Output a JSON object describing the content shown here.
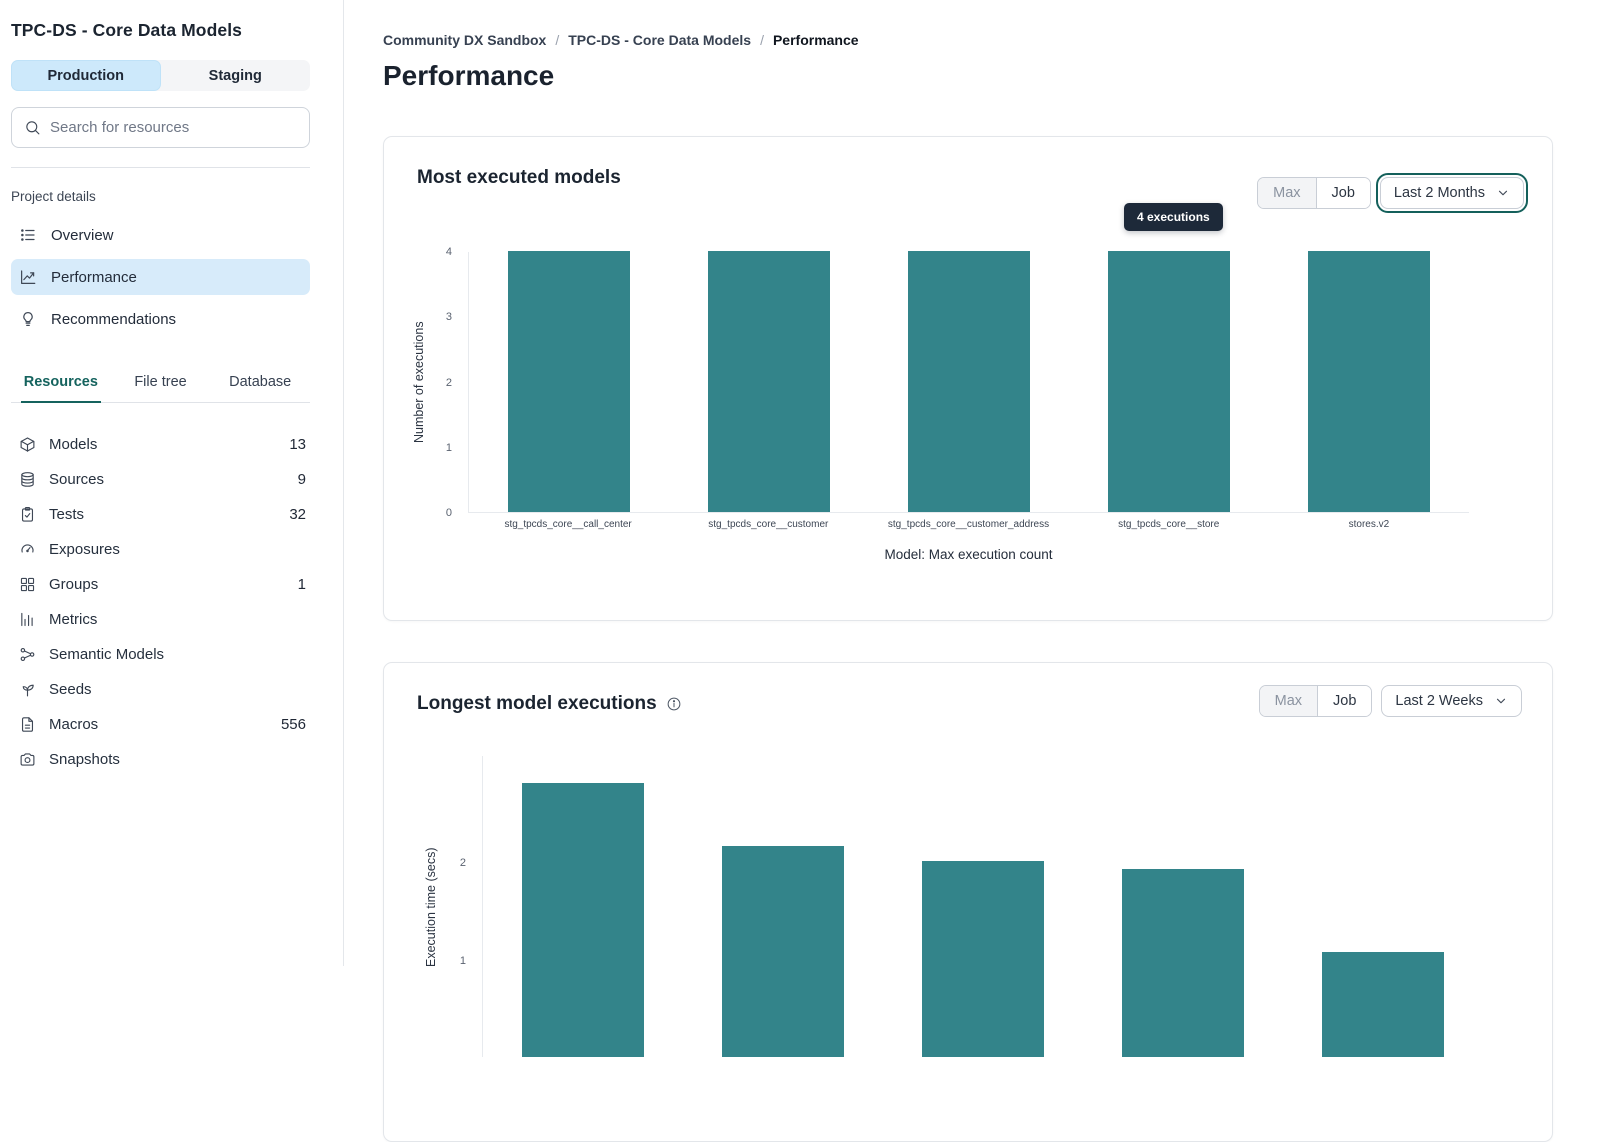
{
  "sidebar": {
    "project_title": "TPC-DS - Core Data Models",
    "environments": [
      {
        "label": "Production",
        "active": true
      },
      {
        "label": "Staging",
        "active": false
      }
    ],
    "search": {
      "placeholder": "Search for resources"
    },
    "project_details_label": "Project details",
    "nav": [
      {
        "label": "Overview",
        "icon": "list",
        "active": false
      },
      {
        "label": "Performance",
        "icon": "line-chart",
        "active": true
      },
      {
        "label": "Recommendations",
        "icon": "lightbulb",
        "active": false
      }
    ],
    "tabs": [
      {
        "label": "Resources",
        "active": true
      },
      {
        "label": "File tree",
        "active": false
      },
      {
        "label": "Database",
        "active": false
      }
    ],
    "resources": [
      {
        "label": "Models",
        "icon": "cube",
        "count": "13"
      },
      {
        "label": "Sources",
        "icon": "database",
        "count": "9"
      },
      {
        "label": "Tests",
        "icon": "clipboard",
        "count": "32"
      },
      {
        "label": "Exposures",
        "icon": "gauge",
        "count": ""
      },
      {
        "label": "Groups",
        "icon": "grid",
        "count": "1"
      },
      {
        "label": "Metrics",
        "icon": "bar-chart",
        "count": ""
      },
      {
        "label": "Semantic Models",
        "icon": "nodes",
        "count": ""
      },
      {
        "label": "Seeds",
        "icon": "seedling",
        "count": ""
      },
      {
        "label": "Macros",
        "icon": "file-text",
        "count": "556"
      },
      {
        "label": "Snapshots",
        "icon": "camera",
        "count": ""
      }
    ]
  },
  "header": {
    "breadcrumb": [
      "Community DX Sandbox",
      "TPC-DS - Core Data Models",
      "Performance"
    ],
    "page_title": "Performance"
  },
  "colors": {
    "bar_teal": "#33848A",
    "accent_teal": "#15635E",
    "active_blue": "#D7EBFA",
    "tooltip_bg": "#1D2939"
  },
  "chart_data": [
    {
      "type": "bar",
      "title": "Most executed models",
      "categories": [
        "stg_tpcds_core__call_center",
        "stg_tpcds_core__customer",
        "stg_tpcds_core__customer_address",
        "stg_tpcds_core__store",
        "stores.v2"
      ],
      "values": [
        4,
        4,
        4,
        4,
        4
      ],
      "xlabel": "Model: Max execution count",
      "ylabel": "Number of executions",
      "ylim": [
        0,
        4
      ],
      "yticks": [
        0,
        1,
        2,
        3,
        4
      ],
      "grid": false,
      "legend": false,
      "controls": {
        "segments": [
          {
            "label": "Max",
            "muted": true
          },
          {
            "label": "Job",
            "muted": false
          }
        ],
        "range_label": "Last 2 Months",
        "range_focused": true
      },
      "tooltip": {
        "text": "4 executions"
      }
    },
    {
      "type": "bar",
      "title": "Longest model executions",
      "categories": [
        "",
        "",
        "",
        "",
        ""
      ],
      "values": [
        2.8,
        2.15,
        2.0,
        1.92,
        1.07
      ],
      "ylabel": "Execution time (secs)",
      "ylim": [
        0,
        3.07
      ],
      "yticks": [
        1,
        2
      ],
      "grid": false,
      "legend": false,
      "controls": {
        "segments": [
          {
            "label": "Max",
            "muted": true
          },
          {
            "label": "Job",
            "muted": false
          }
        ],
        "range_label": "Last 2 Weeks",
        "range_focused": false
      }
    }
  ]
}
